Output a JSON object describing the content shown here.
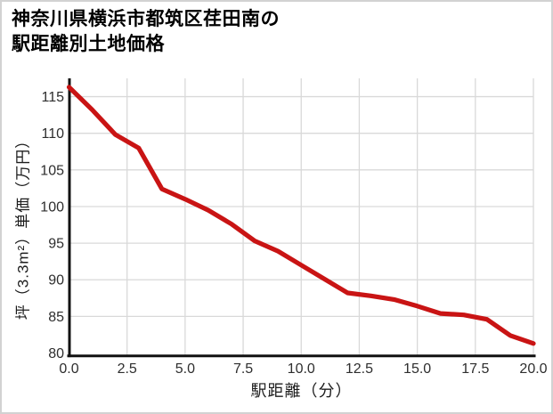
{
  "accent_color": "#c91414",
  "grid_color": "#d9d9d9",
  "axis_color": "#111111",
  "chart_data": {
    "type": "line",
    "title": "神奈川県横浜市都筑区荏田南の駅距離別土地価格",
    "title_lines": [
      "神奈川県横浜市都筑区荏田南の",
      "駅距離別土地価格"
    ],
    "xlabel": "駅距離（分）",
    "ylabel": "坪（3.3m²）単価（万円）",
    "x": [
      0,
      1,
      2,
      3,
      4,
      5,
      6,
      7,
      8,
      9,
      10,
      11,
      12,
      13,
      14,
      15,
      16,
      17,
      18,
      19,
      20
    ],
    "values": [
      116.3,
      113.2,
      109.8,
      108.0,
      102.4,
      101.0,
      99.5,
      97.6,
      95.3,
      93.9,
      92.0,
      90.1,
      88.2,
      87.8,
      87.3,
      86.4,
      85.4,
      85.2,
      84.6,
      82.4,
      81.3
    ],
    "series_name": "駅距離別土地価格",
    "xticks": [
      0.0,
      2.5,
      5.0,
      7.5,
      10.0,
      12.5,
      15.0,
      17.5,
      20.0
    ],
    "xtick_labels": [
      "0.0",
      "2.5",
      "5.0",
      "7.5",
      "10.0",
      "12.5",
      "15.0",
      "17.5",
      "20.0"
    ],
    "yticks": [
      80,
      85,
      90,
      95,
      100,
      105,
      110,
      115
    ],
    "ytick_labels": [
      "80",
      "85",
      "90",
      "95",
      "100",
      "105",
      "110",
      "115"
    ],
    "xlim": [
      0,
      20
    ],
    "ylim": [
      80,
      117.5
    ],
    "grid": true,
    "legend": false,
    "line_color": "#c91414"
  }
}
